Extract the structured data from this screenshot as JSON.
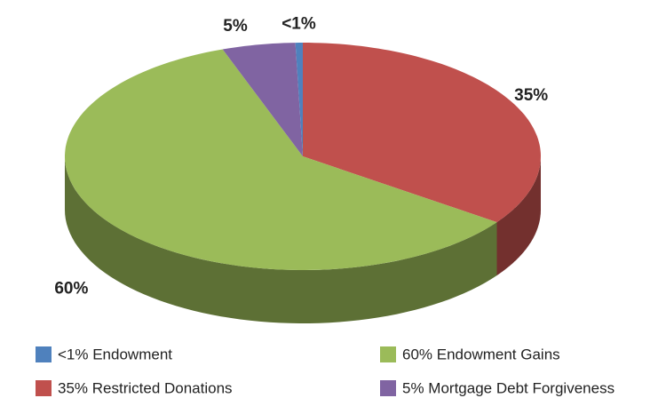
{
  "chart_data": {
    "type": "pie3d",
    "categories": [
      "35% Restricted Donations",
      "60% Endowment Gains",
      "5% Mortgage Debt Forgiveness",
      "<1% Endowment"
    ],
    "values": [
      35,
      60,
      5,
      0.5
    ],
    "value_labels": [
      "35%",
      "60%",
      "5%",
      "<1%"
    ],
    "colors": [
      "#c0504d",
      "#9bbb59",
      "#8064a2",
      "#4f81bd"
    ],
    "legend": "bottom"
  }
}
